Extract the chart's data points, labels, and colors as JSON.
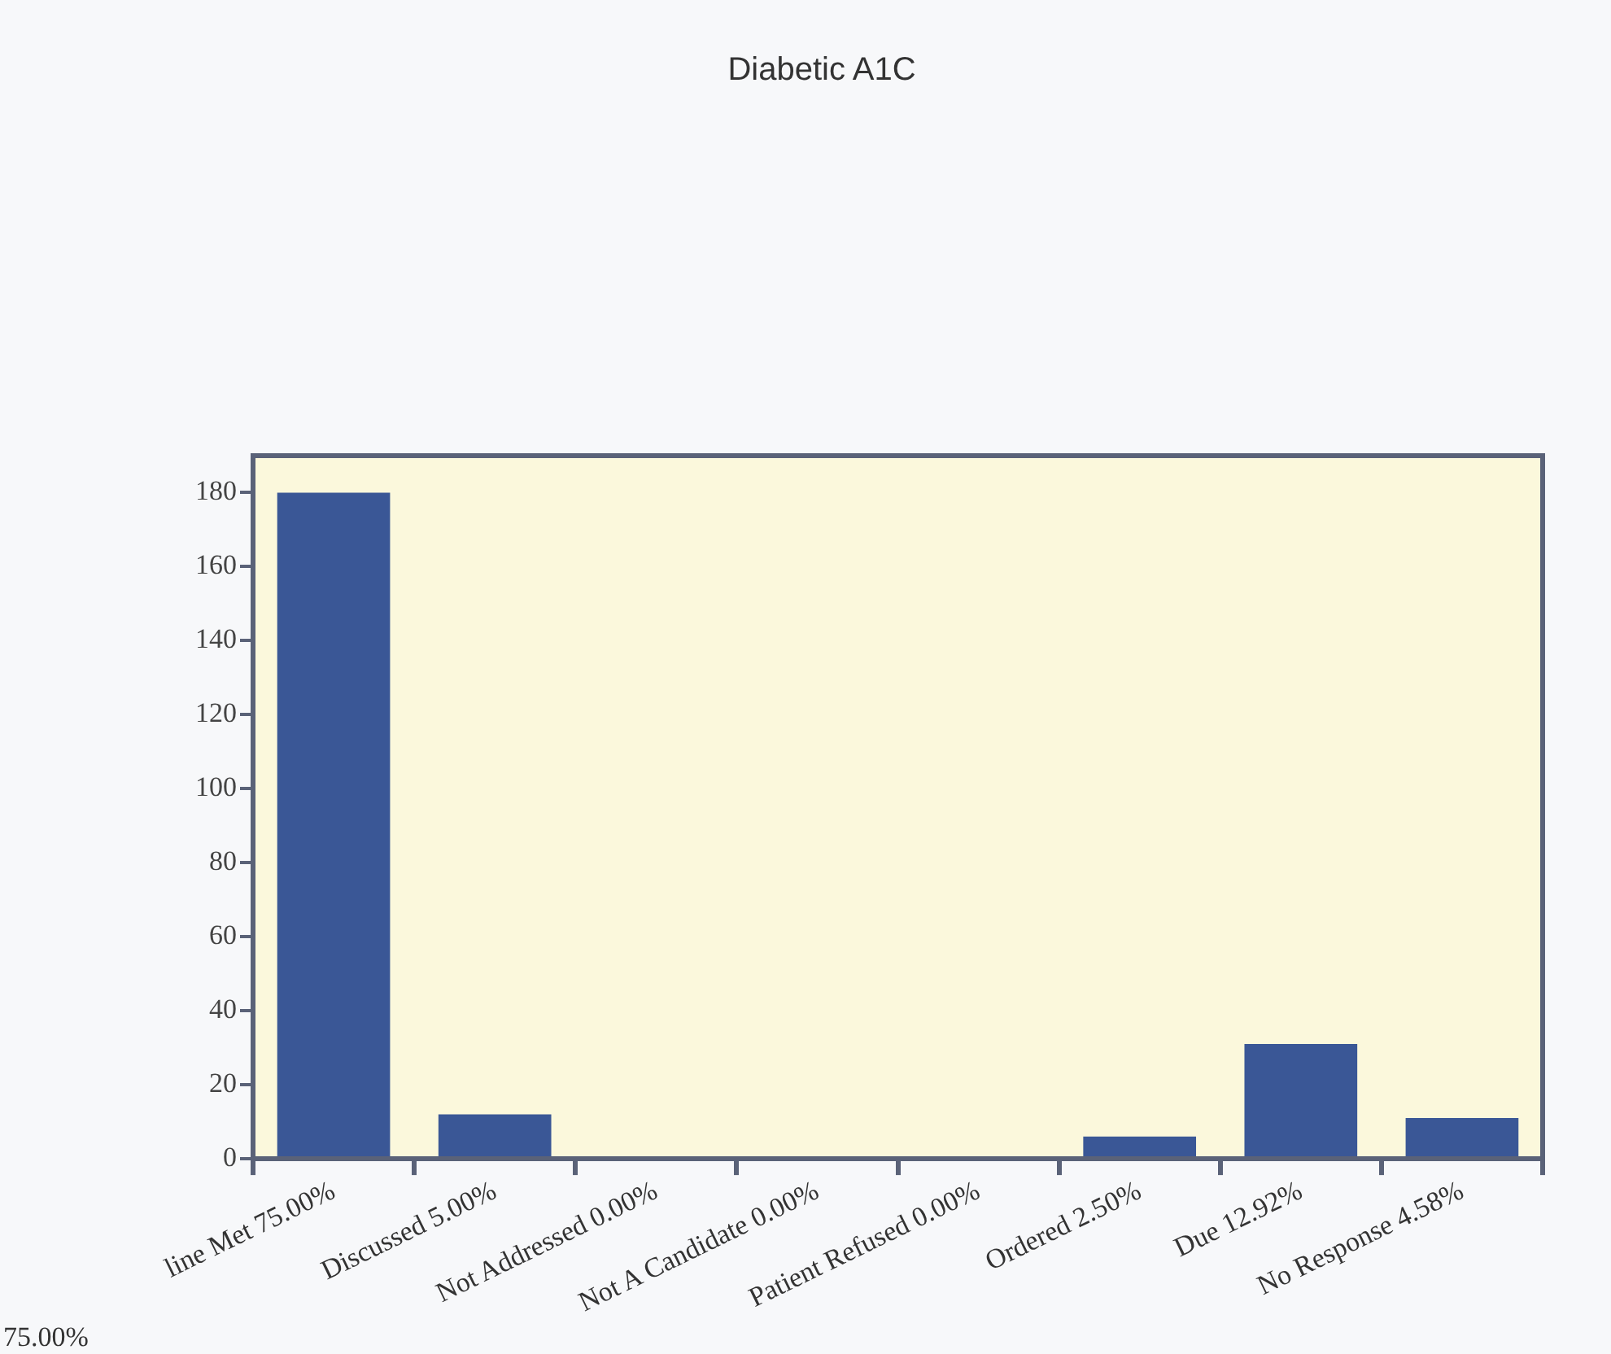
{
  "chart_data": {
    "type": "bar",
    "title": "Diabetic A1C",
    "categories": [
      "line Met 75.00%",
      "Discussed 5.00%",
      "Not Addressed 0.00%",
      "Not A Candidate 0.00%",
      "Patient Refused 0.00%",
      "Ordered 2.50%",
      "Due 12.92%",
      "No Response 4.58%"
    ],
    "values": [
      180,
      12,
      0,
      0,
      0,
      6,
      31,
      11
    ],
    "color": "#3a5796",
    "ylim": [
      0,
      190
    ],
    "yticks": [
      0,
      20,
      40,
      60,
      80,
      100,
      120,
      140,
      160,
      180
    ],
    "grid": false,
    "legend": false,
    "annotations": [
      "75.00%"
    ]
  }
}
